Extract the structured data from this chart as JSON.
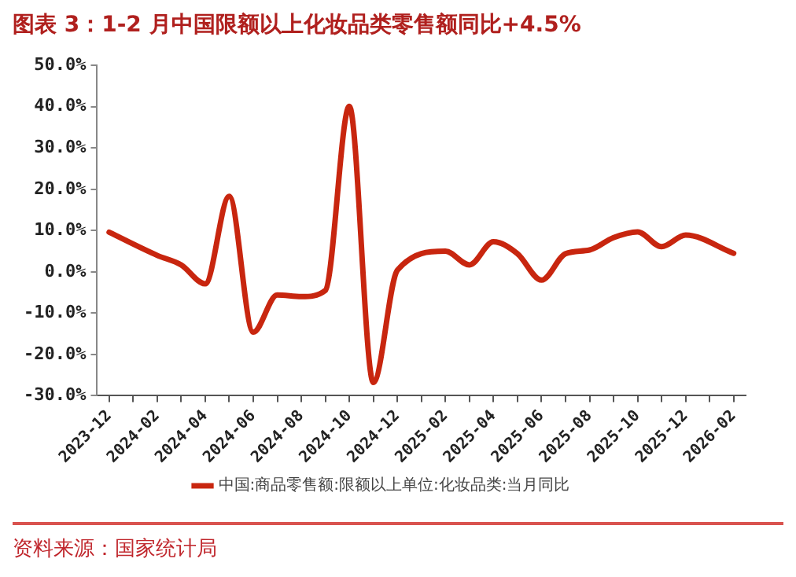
{
  "chart_data": {
    "type": "line",
    "title": "图表 3：1-2 月中国限额以上化妆品类零售额同比+4.5%",
    "categories": [
      "2023-12",
      null,
      "2024-02",
      null,
      "2024-04",
      null,
      "2024-06",
      null,
      "2024-08",
      null,
      "2024-10",
      null,
      "2024-12",
      null,
      "2025-02",
      null,
      "2025-04",
      null,
      "2025-06",
      null,
      "2025-08",
      null,
      "2025-10",
      null,
      "2025-12",
      null,
      "2026-02"
    ],
    "series": [
      {
        "name": "中国:商品零售额:限额以上单位:化妆品类:当月同比",
        "color": "#c8260f",
        "values": [
          9.6,
          null,
          4.0,
          1.7,
          -2.9,
          18.3,
          -14.6,
          -5.6,
          -6.0,
          -4.5,
          40.1,
          -26.8,
          0.4,
          null,
          5.0,
          1.7,
          7.3,
          4.4,
          -2.0,
          4.4,
          5.3,
          8.3,
          9.7,
          6.1,
          8.9,
          null,
          4.5
        ]
      }
    ],
    "ylim": [
      -30,
      50
    ],
    "yticks": [
      {
        "value": -30,
        "label": "-30.0%"
      },
      {
        "value": -20,
        "label": "-20.0%"
      },
      {
        "value": -10,
        "label": "-10.0%"
      },
      {
        "value": 0,
        "label": "0.0%"
      },
      {
        "value": 10,
        "label": "10.0%"
      },
      {
        "value": 20,
        "label": "20.0%"
      },
      {
        "value": 30,
        "label": "30.0%"
      },
      {
        "value": 40,
        "label": "40.0%"
      },
      {
        "value": 50,
        "label": "50.0%"
      }
    ],
    "grid": false,
    "legend": "bottom",
    "marker": "none",
    "line_style": "solid",
    "annotations": [
      "资料来源：国家统计局"
    ]
  }
}
